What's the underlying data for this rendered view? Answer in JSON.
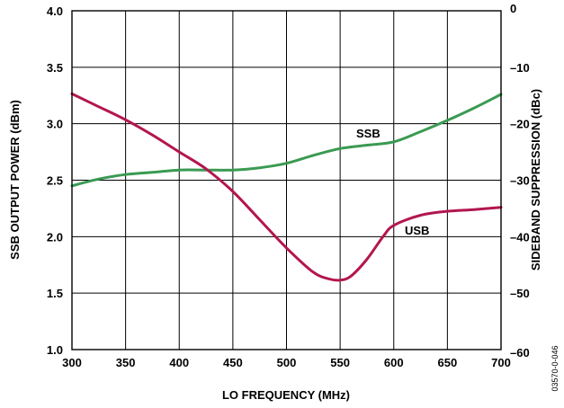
{
  "chart_data": {
    "type": "line",
    "title": "",
    "xlabel": "LO FREQUENCY (MHz)",
    "ylabel": "SSB OUTPUT POWER (dBm)",
    "y2label": "SIDEBAND SUPPRESSION (dBc)",
    "xlim": [
      300,
      700
    ],
    "ylim": [
      1.0,
      4.0
    ],
    "y2lim": [
      -60,
      0
    ],
    "grid": true,
    "x_ticks": [
      "300",
      "350",
      "400",
      "450",
      "500",
      "550",
      "600",
      "650",
      "700"
    ],
    "y_ticks": [
      "1.0",
      "1.5",
      "2.0",
      "2.5",
      "3.0",
      "3.5",
      "4.0"
    ],
    "y2_ticks": [
      "–60",
      "–50",
      "–40",
      "–30",
      "–20",
      "–10",
      "0"
    ],
    "series": [
      {
        "name": "SSB",
        "axis": "left",
        "color": "#3a9a52",
        "x": [
          300,
          325,
          350,
          375,
          400,
          425,
          450,
          475,
          500,
          525,
          550,
          575,
          600,
          625,
          650,
          675,
          700
        ],
        "y": [
          2.45,
          2.51,
          2.55,
          2.57,
          2.59,
          2.59,
          2.59,
          2.61,
          2.65,
          2.72,
          2.78,
          2.81,
          2.84,
          2.93,
          3.03,
          3.14,
          3.26
        ]
      },
      {
        "name": "USB",
        "axis": "right",
        "color": "#b3164f",
        "x": [
          300,
          325,
          350,
          375,
          400,
          425,
          450,
          475,
          500,
          525,
          540,
          550,
          560,
          575,
          590,
          600,
          625,
          650,
          675,
          700
        ],
        "y": [
          -14.7,
          -17.0,
          -19.3,
          -22.0,
          -25.0,
          -28.0,
          -32.0,
          -37.0,
          -42.0,
          -46.3,
          -47.5,
          -47.7,
          -47.0,
          -44.0,
          -40.0,
          -38.0,
          -36.2,
          -35.5,
          -35.2,
          -34.8
        ]
      }
    ],
    "annotations": [
      {
        "text": "SSB",
        "series": "SSB"
      },
      {
        "text": "USB",
        "series": "USB"
      }
    ],
    "figure_id": "03570-0-046"
  }
}
